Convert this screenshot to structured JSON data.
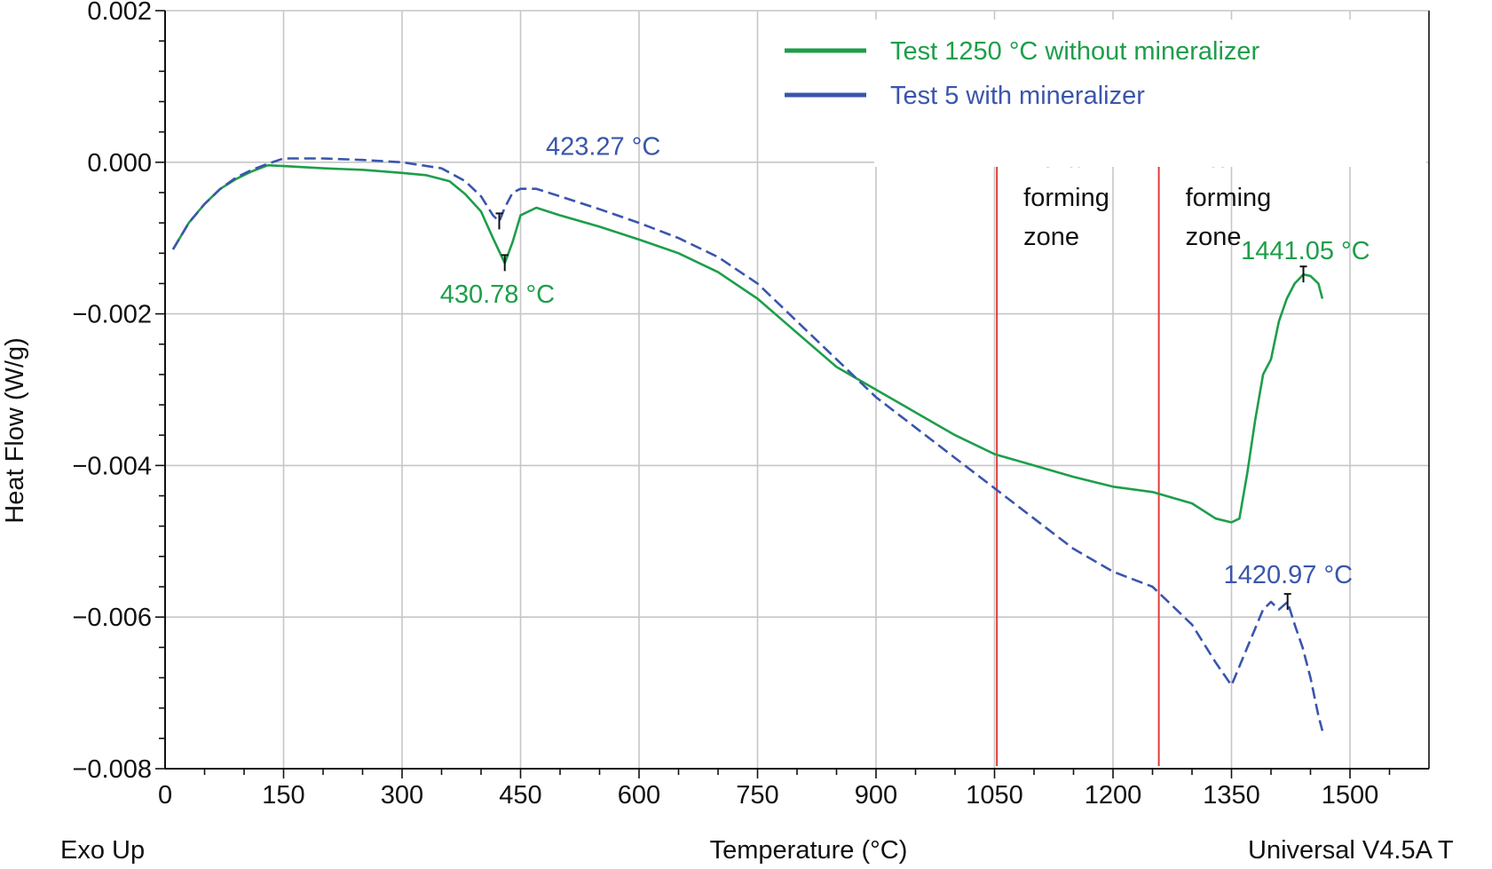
{
  "chart_data": {
    "type": "line",
    "xlabel": "Temperature (°C)",
    "ylabel": "Heat Flow (W/g)",
    "xlim": [
      0,
      1600
    ],
    "ylim": [
      -0.008,
      0.002
    ],
    "x_ticks": [
      "0",
      "150",
      "300",
      "450",
      "600",
      "750",
      "900",
      "1050",
      "1200",
      "1350",
      "1500"
    ],
    "y_ticks": [
      "0.002",
      "0.000",
      "−0.002",
      "−0.004",
      "−0.006",
      "−0.008"
    ],
    "corner_notes": {
      "left": "Exo Up",
      "right": "Universal V4.5A T"
    },
    "grid": true,
    "legend_position": "top-right",
    "series": [
      {
        "name": "Test 1250 °C without mineralizer",
        "color": "#1e9e4a",
        "style": "solid",
        "x": [
          10,
          30,
          50,
          70,
          90,
          110,
          130,
          150,
          200,
          250,
          300,
          330,
          360,
          380,
          400,
          415,
          430,
          440,
          450,
          470,
          500,
          550,
          600,
          650,
          700,
          750,
          800,
          850,
          900,
          950,
          1000,
          1050,
          1100,
          1150,
          1200,
          1250,
          1300,
          1330,
          1350,
          1360,
          1370,
          1380,
          1390,
          1400,
          1410,
          1420,
          1430,
          1441,
          1450,
          1460,
          1465
        ],
        "y": [
          -0.00115,
          -0.0008,
          -0.00055,
          -0.00035,
          -0.00022,
          -0.00012,
          -4e-05,
          -5e-05,
          -8e-05,
          -0.0001,
          -0.00014,
          -0.00017,
          -0.00025,
          -0.00042,
          -0.00065,
          -0.001,
          -0.00133,
          -0.00105,
          -0.0007,
          -0.0006,
          -0.0007,
          -0.00085,
          -0.00102,
          -0.0012,
          -0.00145,
          -0.0018,
          -0.00225,
          -0.0027,
          -0.003,
          -0.0033,
          -0.0036,
          -0.00385,
          -0.004,
          -0.00415,
          -0.00428,
          -0.00435,
          -0.0045,
          -0.0047,
          -0.00475,
          -0.0047,
          -0.0041,
          -0.0034,
          -0.0028,
          -0.0026,
          -0.0021,
          -0.0018,
          -0.0016,
          -0.00148,
          -0.0015,
          -0.0016,
          -0.0018
        ]
      },
      {
        "name": "Test 5 with mineralizer",
        "color": "#3a55ad",
        "style": "dashed",
        "x": [
          10,
          30,
          50,
          70,
          90,
          110,
          130,
          150,
          200,
          250,
          300,
          350,
          380,
          400,
          415,
          423,
          430,
          440,
          450,
          470,
          500,
          550,
          600,
          650,
          700,
          750,
          800,
          850,
          900,
          950,
          1000,
          1050,
          1100,
          1150,
          1200,
          1250,
          1300,
          1330,
          1350,
          1370,
          1390,
          1400,
          1410,
          1421,
          1430,
          1440,
          1450,
          1460,
          1465
        ],
        "y": [
          -0.00115,
          -0.0008,
          -0.00055,
          -0.00035,
          -0.0002,
          -0.0001,
          -2e-05,
          5e-05,
          5e-05,
          3e-05,
          0.0,
          -8e-05,
          -0.00025,
          -0.00045,
          -0.0007,
          -0.00078,
          -0.0006,
          -0.0004,
          -0.00035,
          -0.00035,
          -0.00045,
          -0.00062,
          -0.0008,
          -0.001,
          -0.00125,
          -0.0016,
          -0.0021,
          -0.0026,
          -0.0031,
          -0.0035,
          -0.0039,
          -0.0043,
          -0.0047,
          -0.0051,
          -0.0054,
          -0.0056,
          -0.0061,
          -0.0066,
          -0.0069,
          -0.0064,
          -0.0059,
          -0.0058,
          -0.0059,
          -0.0058,
          -0.0061,
          -0.0064,
          -0.0068,
          -0.0073,
          -0.0075
        ]
      }
    ],
    "annotations": [
      {
        "text": "423.27 °C",
        "series": 1,
        "x": 423,
        "y": -0.00078,
        "label_x": 482,
        "label_y": 0.0001,
        "anchor": "start",
        "color": "#3a55ad"
      },
      {
        "text": "430.78 °C",
        "series": 0,
        "x": 430,
        "y": -0.00133,
        "label_x": 348,
        "label_y": -0.00185,
        "anchor": "start",
        "color": "#1e9e4a"
      },
      {
        "text": "1441.05 °C",
        "series": 0,
        "x": 1441,
        "y": -0.00148,
        "label_x": 1362,
        "label_y": -0.00128,
        "anchor": "start",
        "color": "#1e9e4a"
      },
      {
        "text": "1420.97 °C",
        "series": 1,
        "x": 1421,
        "y": -0.0058,
        "label_x": 1340,
        "label_y": -0.00555,
        "anchor": "start",
        "color": "#3a55ad"
      }
    ],
    "zones": [
      {
        "x": 1053,
        "color": "#e23b3b",
        "lines": [
          "Belita",
          "forming",
          "zone"
        ]
      },
      {
        "x": 1258,
        "color": "#e23b3b",
        "lines": [
          "Alte",
          "forming",
          "zone"
        ]
      }
    ]
  }
}
